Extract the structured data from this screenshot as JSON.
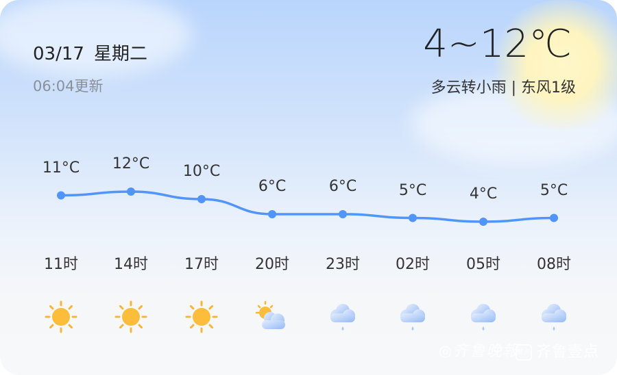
{
  "header": {
    "date": "03/17",
    "weekday": "星期二",
    "updated": "06:04更新",
    "temp_range": "4~12℃",
    "description": "多云转小雨 | 东风1级"
  },
  "forecast": [
    {
      "time": "11时",
      "temp": "11°C",
      "value": 11,
      "icon": "sunny-icon"
    },
    {
      "time": "14时",
      "temp": "12°C",
      "value": 12,
      "icon": "sunny-icon"
    },
    {
      "time": "17时",
      "temp": "10°C",
      "value": 10,
      "icon": "sunny-icon"
    },
    {
      "time": "20时",
      "temp": "6°C",
      "value": 6,
      "icon": "partly-cloudy-icon"
    },
    {
      "time": "23时",
      "temp": "6°C",
      "value": 6,
      "icon": "light-rain-icon"
    },
    {
      "time": "02时",
      "temp": "5°C",
      "value": 5,
      "icon": "light-rain-icon"
    },
    {
      "time": "05时",
      "temp": "4°C",
      "value": 4,
      "icon": "light-rain-icon"
    },
    {
      "time": "08时",
      "temp": "5°C",
      "value": 5,
      "icon": "light-rain-icon"
    }
  ],
  "colors": {
    "line": "#4f95fb",
    "sun": "#fbb534"
  },
  "watermark": {
    "brand1": "齐鲁晚報",
    "brand2": "齐鲁壹点",
    "badge": "壹点"
  }
}
